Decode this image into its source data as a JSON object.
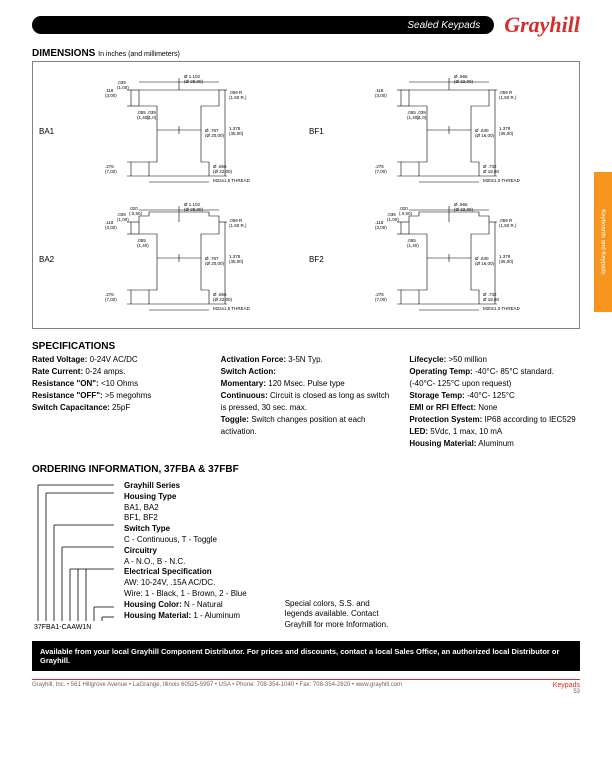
{
  "header": {
    "title": "Sealed Keypads",
    "logo": "Grayhill"
  },
  "side_tab": "Keyboards and Keypads",
  "dimensions": {
    "title": "DIMENSIONS",
    "subtitle": "In inches (and millimeters)",
    "variants": [
      "BA1",
      "BF1",
      "BA2",
      "BF2"
    ],
    "style": {
      "box_border": "#808080",
      "line_color": "#000000",
      "dim_text_size": 4.5,
      "label_size": 8
    },
    "ba1": {
      "top_dia": "Ø 1.102\n(Ø 28,00)",
      "left_upper": ".118\n(3,00)",
      "left_upper2": ".039\n(1,00)",
      "radius": ".059 R\n(1,50 R.)",
      "step_w": ".055\n(1,40)",
      "step_h": ".039\n(1,0)",
      "right_h": "1.378\n(35,00)",
      "mid_dia": "Ø .787\n(Ø 20,00)",
      "left_lower": ".276\n(7,00)",
      "bot_dia1": "Ø .866\n(Ø 22,00)",
      "thread": "M22x1,5 THREAD"
    },
    "bf1": {
      "top_dia": "Ø .866\n(Ø 22,00)",
      "left_upper": ".118\n(3,00)",
      "radius": ".059 R\n(1,50 R.)",
      "step_w": ".055\n(1,40)",
      "step_h": ".039\n(1,0)",
      "right_h": "1.378\n(35,00)",
      "mid_dia": "Ø .630\n(Ø 16,00)",
      "left_lower": ".276\n(7,00)",
      "bot_dia1": "Ø .732\nØ 18,60",
      "thread": "M20x1,0 THREAD"
    },
    "ba2": {
      "top_dia": "Ø 1.102\n(Ø 28,00)",
      "left_upper": ".118\n(3,00)",
      "left_upper2": ".039\n(1,00)",
      "left_upper3": ".020\n(.0,50)",
      "radius": ".059 R\n(1,50 R.)",
      "step_w": ".055\n(1,40)",
      "right_h": "1.378\n(35,00)",
      "mid_dia": "Ø .787\n(Ø 20,00)",
      "left_lower": ".276\n(7,00)",
      "bot_dia1": "Ø .866\n(Ø 22,00)",
      "thread": "M22x1,5 THREAD"
    },
    "bf2": {
      "top_dia": "Ø .866\n(Ø 22,00)",
      "left_upper": ".118\n(3,00)",
      "left_upper2": ".039\n(1,00)",
      "left_upper3": ".020\n(.0,50)",
      "radius": ".059 R\n(1,50 R.)",
      "step_w": ".055\n(1,40)",
      "right_h": "1.378\n(35,00)",
      "mid_dia": "Ø .630\n(Ø 16,00)",
      "left_lower": ".276\n(7,00)",
      "bot_dia1": "Ø .732\nØ 18,60",
      "thread": "M20x1,0 THREAD"
    }
  },
  "specs": {
    "title": "SPECIFICATIONS",
    "col1": [
      {
        "l": "Rated Voltage:",
        "v": " 0-24V AC/DC"
      },
      {
        "l": "Rate Current:",
        "v": " 0-24 amps."
      },
      {
        "l": "Resistance \"ON\":",
        "v": " <10 Ohms"
      },
      {
        "l": "Resistance \"OFF\":",
        "v": " >5 megohms"
      },
      {
        "l": "Switch Capacitance:",
        "v": " 25pF"
      }
    ],
    "col2": [
      {
        "l": "Activation Force:",
        "v": " 3-5N Typ."
      },
      {
        "l": "Switch Action:",
        "v": ""
      },
      {
        "l": "Momentary:",
        "v": " 120 Msec. Pulse type"
      },
      {
        "l": "Continuous:",
        "v": " Circuit is closed as long as switch is pressed, 30 sec. max."
      },
      {
        "l": "Toggle:",
        "v": " Switch changes position at each activation."
      }
    ],
    "col3": [
      {
        "l": "Lifecycle:",
        "v": " >50 million"
      },
      {
        "l": "Operating Temp:",
        "v": " -40°C- 85°C standard. (-40°C- 125°C upon request)"
      },
      {
        "l": "Storage Temp:",
        "v": " -40°C- 125°C"
      },
      {
        "l": "EMI or RFI Effect:",
        "v": " None"
      },
      {
        "l": "Protection System:",
        "v": " IP68 according to IEC529"
      },
      {
        "l": "LED:",
        "v": " 5Vdc, 1 max, 10 mA"
      },
      {
        "l": "Housing Material:",
        "v": "  Aluminum"
      }
    ]
  },
  "ordering": {
    "title": "ORDERING INFORMATION, 37FBA & 37FBF",
    "part": "37FBA1-CAAW1N",
    "lines": [
      {
        "b": "Grayhill Series",
        "t": ""
      },
      {
        "b": "Housing Type",
        "t": ""
      },
      {
        "b": "",
        "t": "BA1, BA2"
      },
      {
        "b": "",
        "t": "BF1, BF2"
      },
      {
        "b": "Switch Type",
        "t": ""
      },
      {
        "b": "",
        "t": "C - Continuous, T - Toggle"
      },
      {
        "b": "Circuitry",
        "t": ""
      },
      {
        "b": "",
        "t": "A - N.O., B - N.C."
      },
      {
        "b": "Electrical Specification",
        "t": ""
      },
      {
        "b": "",
        "t": "AW: 10-24V, .15A AC/DC."
      },
      {
        "b": "",
        "t": "Wire: 1 - Black, 1 - Brown, 2 - Blue"
      },
      {
        "b": "Housing Color:",
        "t": " N - Natural"
      },
      {
        "b": "Housing Material:",
        "t": " 1 - Aluminum"
      }
    ],
    "extra": "Special colors, S.S. and legends available. Contact Grayhill for more Information."
  },
  "avail": "Available from your local Grayhill Component Distributor.  For prices and discounts, contact a local Sales Office, an authorized local Distributor or Grayhill.",
  "footer": {
    "left": "Grayhill, Inc. • 561 Hillgrove Avenue • LaGrange, Illinois  60525-5997 • USA • Phone: 708-354-1040 • Fax: 708-354-2820 • www.grayhill.com",
    "cat": "Keypads",
    "page": "53"
  },
  "colors": {
    "brand_red": "#d82c2c",
    "tab_orange": "#f7941e"
  }
}
